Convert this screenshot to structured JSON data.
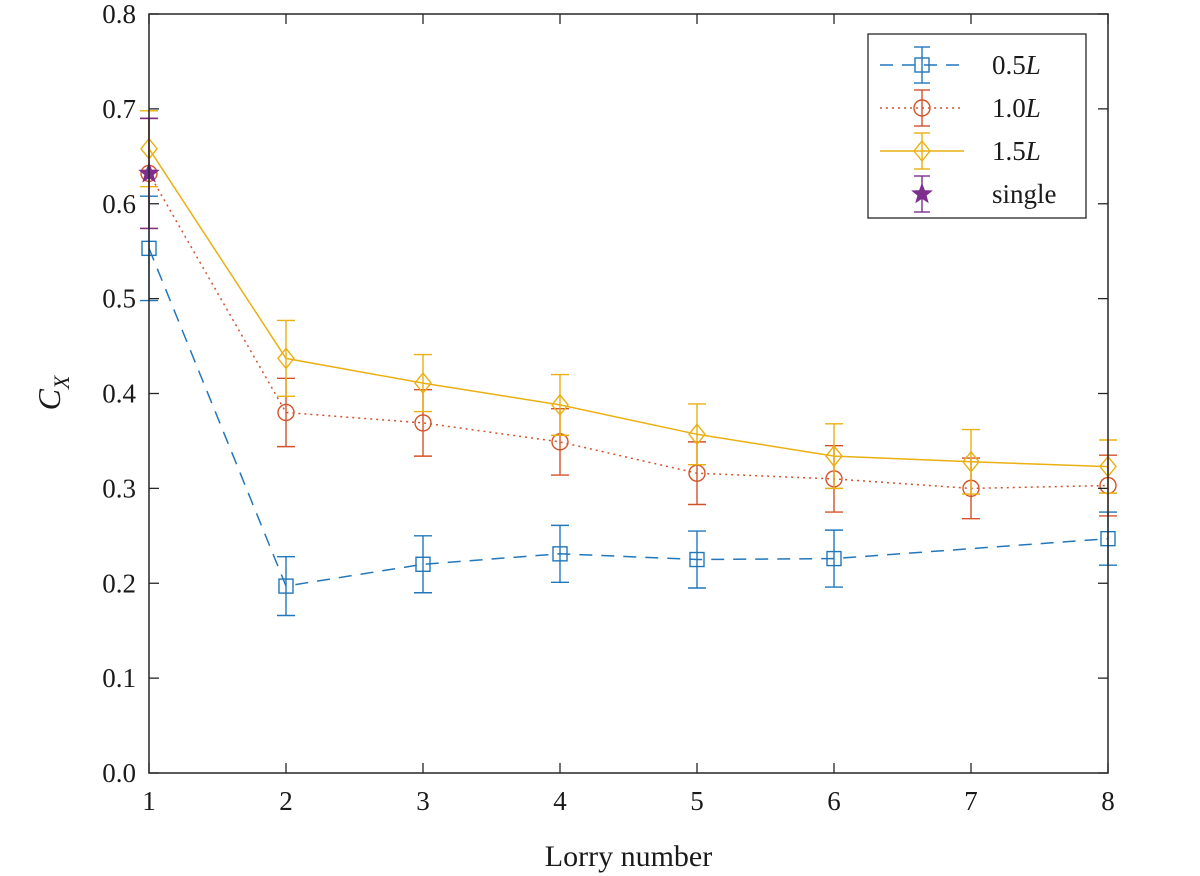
{
  "chart_data": {
    "type": "line",
    "xlabel": "Lorry number",
    "ylabel_main": "C",
    "ylabel_sub": "X",
    "xlim": [
      1,
      8
    ],
    "ylim": [
      0,
      0.8
    ],
    "xticks": [
      "1",
      "2",
      "3",
      "4",
      "5",
      "6",
      "7",
      "8"
    ],
    "yticks": [
      "0.0",
      "0.1",
      "0.2",
      "0.3",
      "0.4",
      "0.5",
      "0.6",
      "0.7",
      "0.8"
    ],
    "grid": false,
    "legend_position": "top-right",
    "series": [
      {
        "name": "0.5L",
        "name_prefix": "0.5",
        "name_suffix": "L",
        "color": "#2277bb",
        "line": "dashed",
        "marker": "square",
        "x": [
          1,
          2,
          3,
          4,
          5,
          6,
          8
        ],
        "values": [
          0.553,
          0.197,
          0.22,
          0.231,
          0.225,
          0.226,
          0.247
        ],
        "err": [
          0.055,
          0.031,
          0.03,
          0.03,
          0.03,
          0.03,
          0.028
        ]
      },
      {
        "name": "1.0L",
        "name_prefix": "1.0",
        "name_suffix": "L",
        "color": "#d4522a",
        "line": "dotted",
        "marker": "circle",
        "x": [
          1,
          2,
          3,
          4,
          5,
          6,
          7,
          8
        ],
        "values": [
          0.632,
          0.38,
          0.369,
          0.349,
          0.316,
          0.31,
          0.3,
          0.303
        ],
        "err": [
          0.058,
          0.036,
          0.035,
          0.035,
          0.033,
          0.035,
          0.032,
          0.032
        ]
      },
      {
        "name": "1.5L",
        "name_prefix": "1.5",
        "name_suffix": "L",
        "color": "#eab012",
        "line": "solid",
        "marker": "diamond",
        "x": [
          1,
          2,
          3,
          4,
          5,
          6,
          7,
          8
        ],
        "values": [
          0.658,
          0.437,
          0.411,
          0.388,
          0.357,
          0.334,
          0.328,
          0.323
        ],
        "err": [
          0.04,
          0.04,
          0.03,
          0.032,
          0.032,
          0.034,
          0.034,
          0.028
        ]
      },
      {
        "name": "single",
        "name_prefix": "single",
        "name_suffix": "",
        "color": "#7e2f8e",
        "line": "none",
        "marker": "star",
        "x": [
          1
        ],
        "values": [
          0.632
        ],
        "err": [
          0.058
        ]
      }
    ]
  }
}
